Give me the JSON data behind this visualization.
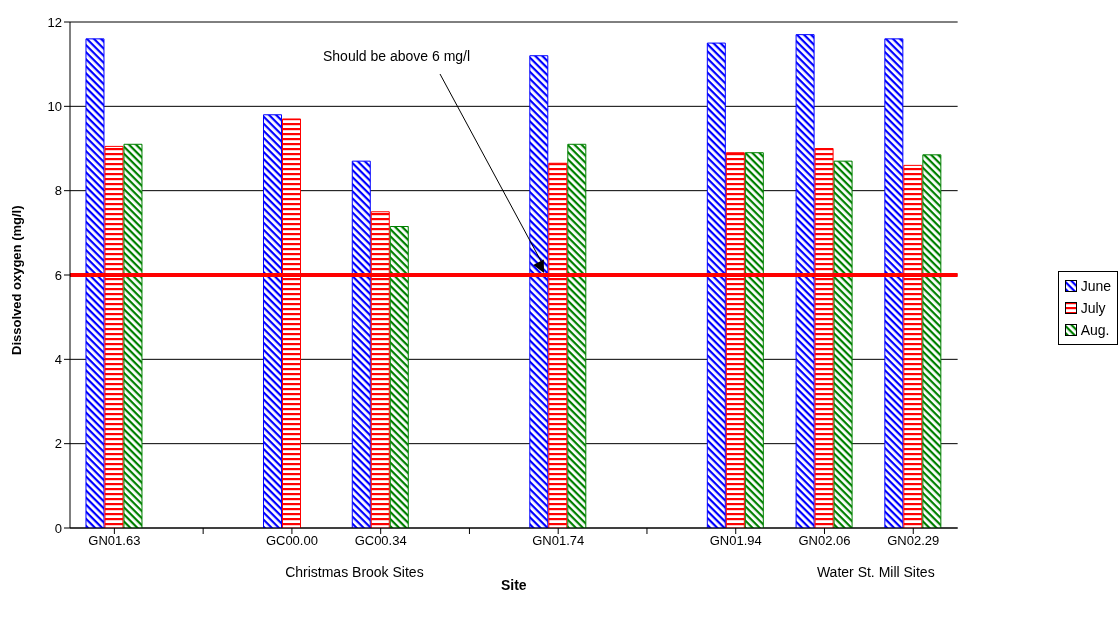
{
  "chart_data": {
    "type": "bar",
    "xlabel": "Site",
    "ylabel": "Dissolved oxygen (mg/l)",
    "categories": [
      "GN01.63",
      null,
      "GC00.00",
      "GC00.34",
      null,
      "GN01.74",
      null,
      "GN01.94",
      "GN02.06",
      "GN02.29"
    ],
    "series": [
      {
        "name": "June",
        "color": "#0000ff",
        "values": [
          11.6,
          null,
          9.8,
          8.7,
          null,
          11.2,
          null,
          11.5,
          11.7,
          11.6
        ]
      },
      {
        "name": "July",
        "color": "#ff0000",
        "values": [
          9.05,
          null,
          9.7,
          7.5,
          null,
          8.65,
          null,
          8.9,
          9.0,
          8.6
        ]
      },
      {
        "name": "Aug.",
        "color": "#008000",
        "values": [
          9.1,
          null,
          null,
          7.15,
          null,
          9.1,
          null,
          8.9,
          8.7,
          8.85
        ]
      }
    ],
    "ylim": [
      0,
      12
    ],
    "yticks": [
      0,
      2,
      4,
      6,
      8,
      10,
      12
    ],
    "grid": "y",
    "legend": "right",
    "ref_lines": [
      {
        "axis": "y",
        "value": 6,
        "color": "#ff0000"
      }
    ],
    "annotations": [
      "Should be above 6 mg/l",
      "Christmas Brook Sites",
      "Water St. Mill Sites"
    ]
  }
}
